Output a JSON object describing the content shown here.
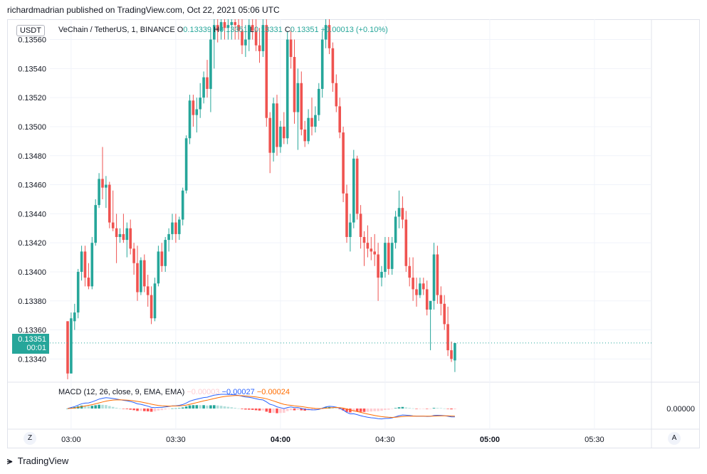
{
  "header": {
    "publish_text": "richardmadrian published on TradingView.com, Oct 22, 2021 05:06 UTC"
  },
  "legend": {
    "symbol": "VeChain / TetherUS, 1, BINANCE",
    "o_label": "O",
    "o_value": "0.13339",
    "h_label": "H",
    "h_value": "0.13351",
    "l_label": "L",
    "l_value": "0.13331",
    "c_label": "C",
    "c_value": "0.13351",
    "change": "+0.00013 (+0.10%)"
  },
  "currency_badge": "USDT",
  "last_price": {
    "value": "0.13351",
    "countdown": "00:01"
  },
  "macd_legend": {
    "label": "MACD (12, 26, close, 9, EMA, EMA)",
    "hist": "−0.00003",
    "macd": "−0.00027",
    "signal": "−0.00024"
  },
  "buttons": {
    "left": "Z",
    "right": "A"
  },
  "footer": {
    "brand": "TradingView"
  },
  "colors": {
    "up": "#26a69a",
    "down": "#ef5350",
    "macd_line": "#2962ff",
    "signal_line": "#ff6d00",
    "hist_up_strong": "#26a69a",
    "hist_up_weak": "#b2dfdb",
    "hist_down_strong": "#ff5252",
    "hist_down_weak": "#ffcdd2"
  },
  "chart_data": {
    "type": "candlestick",
    "title": "VeChain / TetherUS, 1, BINANCE",
    "interval": "1m",
    "time_start": "02:59",
    "y_ticks": [
      0.1334,
      0.1336,
      0.1338,
      0.134,
      0.1342,
      0.1344,
      0.1346,
      0.1348,
      0.135,
      0.1352,
      0.1354,
      0.1356
    ],
    "y_tick_labels": [
      "0.13340",
      "0.13360",
      "0.13380",
      "0.13400",
      "0.13420",
      "0.13440",
      "0.13460",
      "0.13480",
      "0.13500",
      "0.13520",
      "0.13540",
      "0.13560"
    ],
    "x_tick_labels": [
      "03:00",
      "03:30",
      "04:00",
      "04:30",
      "05:00",
      "05:30"
    ],
    "x_tick_minutes": [
      1,
      31,
      61,
      91,
      121,
      151
    ],
    "ylim": [
      0.13324,
      0.13574
    ],
    "grid": true,
    "candles": [
      [
        0.13366,
        0.13366,
        0.13326,
        0.1333
      ],
      [
        0.1333,
        0.13372,
        0.1333,
        0.13368
      ],
      [
        0.13366,
        0.13378,
        0.1336,
        0.13372
      ],
      [
        0.13372,
        0.13402,
        0.13368,
        0.134
      ],
      [
        0.134,
        0.13418,
        0.13394,
        0.13414
      ],
      [
        0.13414,
        0.13418,
        0.1339,
        0.13396
      ],
      [
        0.13396,
        0.13406,
        0.13388,
        0.1339
      ],
      [
        0.1339,
        0.13424,
        0.13388,
        0.1342
      ],
      [
        0.1342,
        0.1345,
        0.13418,
        0.13446
      ],
      [
        0.13446,
        0.13468,
        0.13444,
        0.13464
      ],
      [
        0.13464,
        0.13486,
        0.1345,
        0.13458
      ],
      [
        0.13458,
        0.13466,
        0.13444,
        0.1346
      ],
      [
        0.1346,
        0.13462,
        0.1343,
        0.13434
      ],
      [
        0.13434,
        0.13456,
        0.13428,
        0.1343
      ],
      [
        0.1343,
        0.1344,
        0.13406,
        0.13424
      ],
      [
        0.13424,
        0.1343,
        0.1342,
        0.13426
      ],
      [
        0.13426,
        0.1344,
        0.1342,
        0.13422
      ],
      [
        0.13422,
        0.13434,
        0.1341,
        0.1343
      ],
      [
        0.1343,
        0.13436,
        0.13412,
        0.13416
      ],
      [
        0.13416,
        0.1342,
        0.13398,
        0.13406
      ],
      [
        0.13406,
        0.13418,
        0.1338,
        0.13386
      ],
      [
        0.13386,
        0.1341,
        0.13384,
        0.13408
      ],
      [
        0.13408,
        0.13412,
        0.13386,
        0.1339
      ],
      [
        0.1339,
        0.13398,
        0.13376,
        0.13384
      ],
      [
        0.13384,
        0.1339,
        0.13364,
        0.13368
      ],
      [
        0.13368,
        0.13396,
        0.13366,
        0.13392
      ],
      [
        0.13392,
        0.13418,
        0.1339,
        0.13414
      ],
      [
        0.13414,
        0.1342,
        0.134,
        0.13404
      ],
      [
        0.13404,
        0.13424,
        0.134,
        0.13422
      ],
      [
        0.13422,
        0.1343,
        0.13414,
        0.13426
      ],
      [
        0.13426,
        0.1344,
        0.13422,
        0.13434
      ],
      [
        0.13434,
        0.1344,
        0.1342,
        0.13426
      ],
      [
        0.13426,
        0.13438,
        0.13422,
        0.13436
      ],
      [
        0.13436,
        0.13458,
        0.13432,
        0.13456
      ],
      [
        0.13456,
        0.13494,
        0.13454,
        0.13492
      ],
      [
        0.13492,
        0.13522,
        0.13488,
        0.13518
      ],
      [
        0.13518,
        0.13522,
        0.135,
        0.13508
      ],
      [
        0.13508,
        0.1352,
        0.13496,
        0.13512
      ],
      [
        0.13512,
        0.1353,
        0.13506,
        0.1352
      ],
      [
        0.1352,
        0.13538,
        0.13516,
        0.13534
      ],
      [
        0.13534,
        0.13546,
        0.1352,
        0.13526
      ],
      [
        0.13526,
        0.13566,
        0.1351,
        0.1356
      ],
      [
        0.1356,
        0.13574,
        0.1354,
        0.1357
      ],
      [
        0.1357,
        0.13574,
        0.13558,
        0.13566
      ],
      [
        0.13566,
        0.13574,
        0.1356,
        0.13572
      ],
      [
        0.13572,
        0.13574,
        0.1356,
        0.13568
      ],
      [
        0.13568,
        0.13574,
        0.1356,
        0.1357
      ],
      [
        0.1357,
        0.13574,
        0.1356,
        0.13572
      ],
      [
        0.13572,
        0.13574,
        0.1356,
        0.1357
      ],
      [
        0.1357,
        0.13574,
        0.1356,
        0.13566
      ],
      [
        0.13566,
        0.13574,
        0.1355,
        0.13556
      ],
      [
        0.13556,
        0.1357,
        0.13548,
        0.1356
      ],
      [
        0.1356,
        0.13574,
        0.13552,
        0.1357
      ],
      [
        0.1357,
        0.13574,
        0.1356,
        0.13566
      ],
      [
        0.13566,
        0.13574,
        0.13552,
        0.13556
      ],
      [
        0.13556,
        0.13568,
        0.13544,
        0.13552
      ],
      [
        0.13552,
        0.13574,
        0.13548,
        0.1357
      ],
      [
        0.1357,
        0.13574,
        0.135,
        0.13506
      ],
      [
        0.13506,
        0.1351,
        0.13468,
        0.13482
      ],
      [
        0.13482,
        0.1352,
        0.13476,
        0.13516
      ],
      [
        0.13516,
        0.13522,
        0.1348,
        0.13486
      ],
      [
        0.13486,
        0.13504,
        0.13482,
        0.135
      ],
      [
        0.135,
        0.1351,
        0.13488,
        0.13492
      ],
      [
        0.13492,
        0.13566,
        0.13488,
        0.1356
      ],
      [
        0.1356,
        0.13568,
        0.1354,
        0.13548
      ],
      [
        0.13548,
        0.1356,
        0.13502,
        0.1351
      ],
      [
        0.1351,
        0.1354,
        0.13484,
        0.1353
      ],
      [
        0.1353,
        0.13538,
        0.13494,
        0.13498
      ],
      [
        0.13498,
        0.13504,
        0.13486,
        0.1349
      ],
      [
        0.1349,
        0.13512,
        0.13488,
        0.13506
      ],
      [
        0.13506,
        0.1352,
        0.13494,
        0.135
      ],
      [
        0.135,
        0.13514,
        0.13496,
        0.13508
      ],
      [
        0.13508,
        0.1353,
        0.13504,
        0.13526
      ],
      [
        0.13526,
        0.13566,
        0.1352,
        0.1356
      ],
      [
        0.1356,
        0.13574,
        0.13554,
        0.1357
      ],
      [
        0.1357,
        0.13574,
        0.1355,
        0.13554
      ],
      [
        0.13554,
        0.13558,
        0.13524,
        0.1353
      ],
      [
        0.1353,
        0.13536,
        0.1351,
        0.13514
      ],
      [
        0.13514,
        0.1352,
        0.13492,
        0.13496
      ],
      [
        0.13496,
        0.135,
        0.13448,
        0.13454
      ],
      [
        0.13454,
        0.1346,
        0.1342,
        0.13424
      ],
      [
        0.13424,
        0.1344,
        0.13414,
        0.13434
      ],
      [
        0.13434,
        0.13484,
        0.1343,
        0.13478
      ],
      [
        0.13478,
        0.1348,
        0.13436,
        0.1344
      ],
      [
        0.1344,
        0.13446,
        0.13416,
        0.13424
      ],
      [
        0.13424,
        0.13428,
        0.13404,
        0.1342
      ],
      [
        0.1342,
        0.13432,
        0.1341,
        0.13416
      ],
      [
        0.13416,
        0.13424,
        0.13408,
        0.13414
      ],
      [
        0.13414,
        0.13426,
        0.13404,
        0.13412
      ],
      [
        0.13412,
        0.1342,
        0.1338,
        0.13396
      ],
      [
        0.13396,
        0.13404,
        0.1339,
        0.134
      ],
      [
        0.134,
        0.13424,
        0.13396,
        0.1342
      ],
      [
        0.1342,
        0.13424,
        0.13398,
        0.13402
      ],
      [
        0.13402,
        0.13424,
        0.13398,
        0.1342
      ],
      [
        0.1342,
        0.13442,
        0.13416,
        0.13438
      ],
      [
        0.13438,
        0.13456,
        0.1343,
        0.13444
      ],
      [
        0.13444,
        0.13452,
        0.1343,
        0.13436
      ],
      [
        0.13436,
        0.13442,
        0.134,
        0.13404
      ],
      [
        0.13404,
        0.1341,
        0.1339,
        0.13396
      ],
      [
        0.13396,
        0.1341,
        0.1338,
        0.13388
      ],
      [
        0.13388,
        0.13396,
        0.13376,
        0.13384
      ],
      [
        0.13384,
        0.13396,
        0.13382,
        0.13392
      ],
      [
        0.13392,
        0.13396,
        0.13384,
        0.13388
      ],
      [
        0.13388,
        0.13394,
        0.1337,
        0.13374
      ],
      [
        0.13374,
        0.13378,
        0.13346,
        0.1338
      ],
      [
        0.1338,
        0.1342,
        0.13374,
        0.13412
      ],
      [
        0.13412,
        0.13418,
        0.13378,
        0.13384
      ],
      [
        0.13384,
        0.1339,
        0.1337,
        0.13378
      ],
      [
        0.13378,
        0.13384,
        0.1336,
        0.13364
      ],
      [
        0.13364,
        0.13376,
        0.13342,
        0.13346
      ],
      [
        0.13346,
        0.13352,
        0.13338,
        0.1334
      ],
      [
        0.13339,
        0.13351,
        0.13331,
        0.13351
      ]
    ]
  },
  "macd_data": {
    "zero_label": "0.00000",
    "histogram_sign_pattern": "mostly positive 03:00-03:50, negative 03:50-04:40, near zero after"
  }
}
